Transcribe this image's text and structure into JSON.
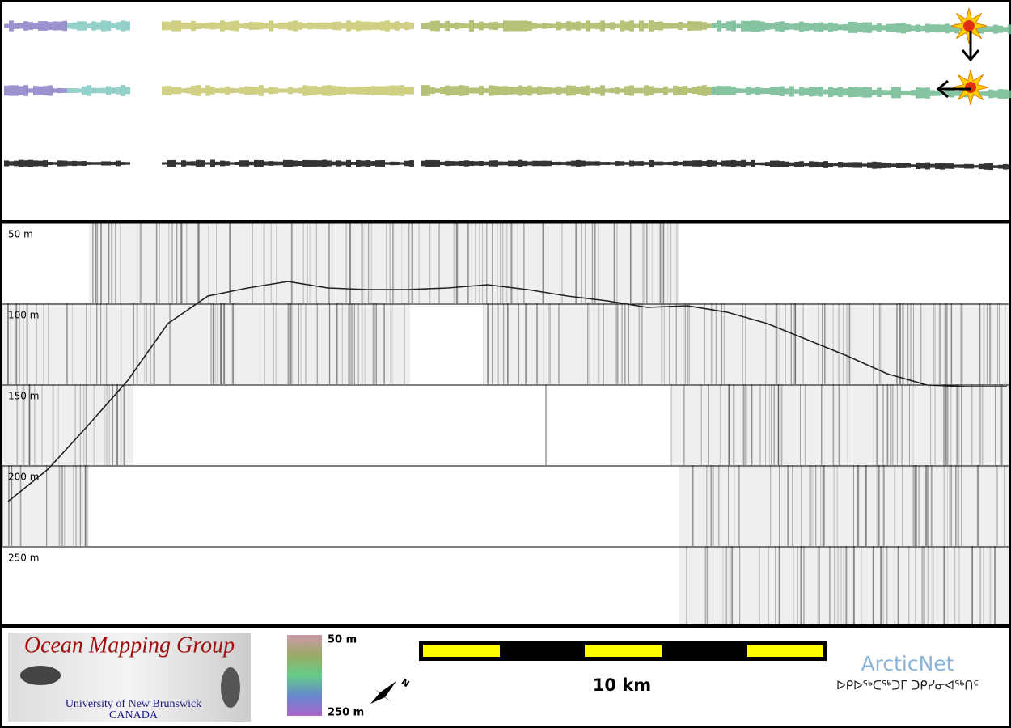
{
  "echogram": {
    "depth_ticks": [
      {
        "value": 50,
        "label": "50 m"
      },
      {
        "value": 100,
        "label": "100 m"
      },
      {
        "value": 150,
        "label": "150 m"
      },
      {
        "value": 200,
        "label": "200 m"
      },
      {
        "value": 250,
        "label": "250 m"
      }
    ],
    "depth_lim": [
      50,
      298
    ],
    "bottom_depth": [
      222,
      202,
      175,
      147,
      112,
      95,
      90,
      86,
      90,
      91,
      91,
      90,
      88,
      91,
      95,
      98,
      102,
      101,
      105,
      112,
      122,
      132,
      143,
      150,
      151,
      151
    ]
  },
  "colorbar": {
    "top_label": "50 m",
    "bottom_label": "250 m"
  },
  "scale_bar": {
    "label": "10 km"
  },
  "compass": {
    "label": "N"
  },
  "logo": {
    "title": "Ocean Mapping Group",
    "subtitle": "University of New Brunswick",
    "country": "CANADA"
  },
  "partner": {
    "name": "ArcticNet",
    "tagline": "ᐅᑭᐅᖅᑕᖅᑐᒥ ᑐᑭᓯᓂᐊᖅᑎᑦ"
  }
}
